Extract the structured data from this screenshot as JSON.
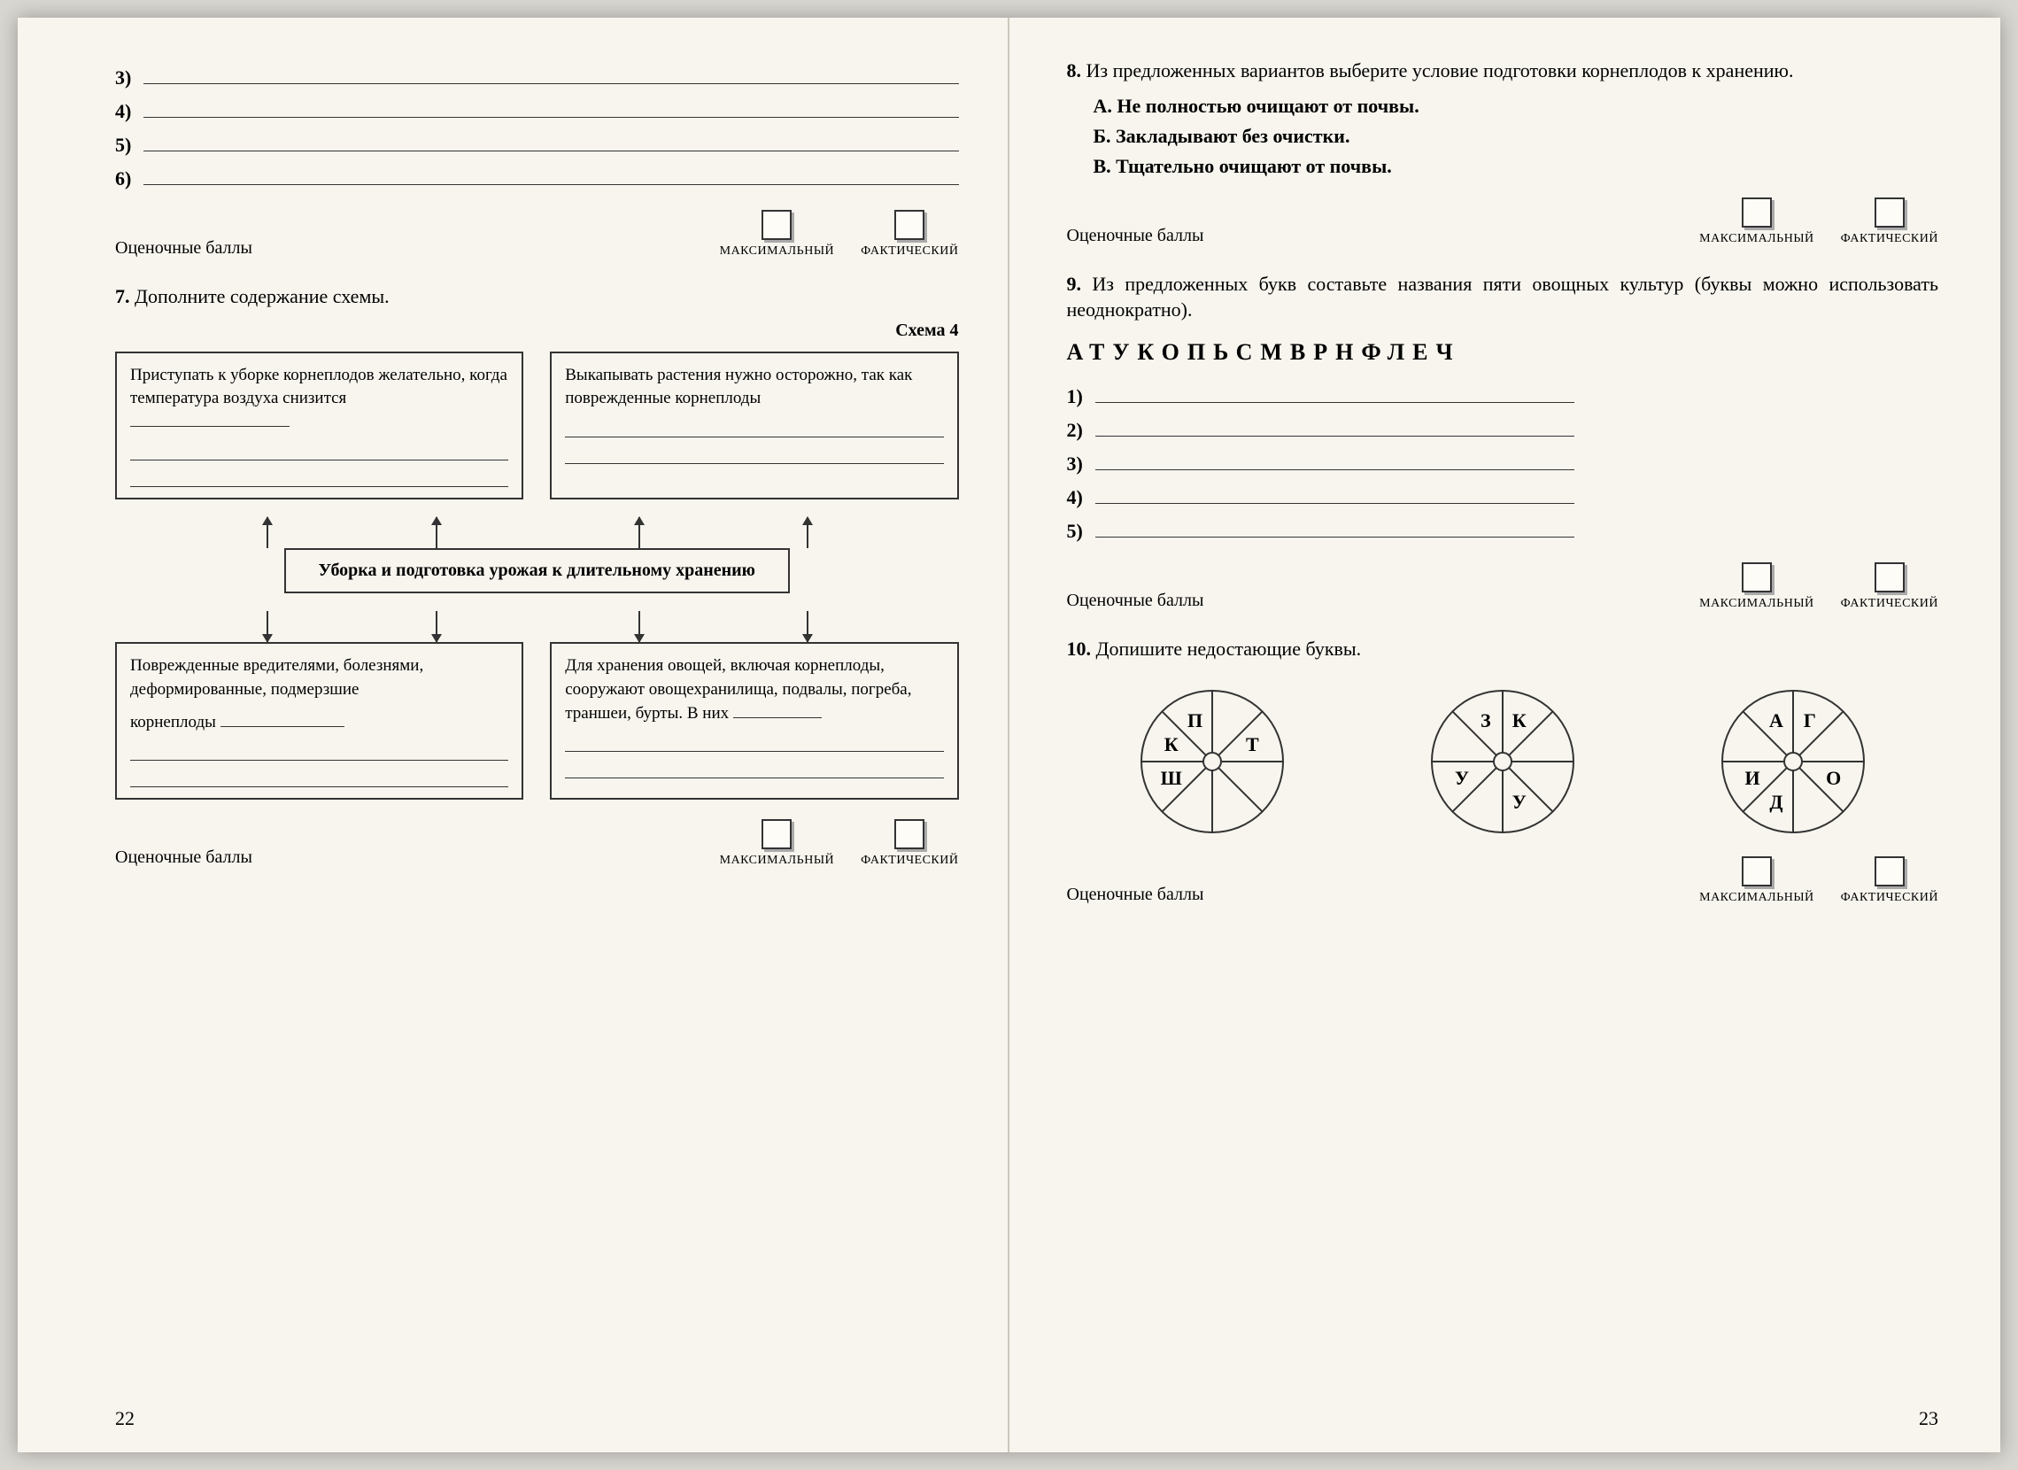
{
  "colors": {
    "scan_bg": "#d8d6d0",
    "paper": "#f7f5ee",
    "ink": "#2a2a2a",
    "shadow": "#aaa"
  },
  "leftPage": {
    "blanks_top": [
      "3)",
      "4)",
      "5)",
      "6)"
    ],
    "score_label": "Оценочные баллы",
    "score_max": "МАКСИМАЛЬНЫЙ",
    "score_fact": "ФАКТИЧЕСКИЙ",
    "task7_num": "7.",
    "task7_text": "Дополните содержание схемы.",
    "scheme_label": "Схема 4",
    "box1": "Приступать к уборке корнеплодов желательно, когда температура воздуха снизится ",
    "box2": "Выкапывать растения нужно осторожно, так как поврежденные корнеплоды",
    "center": "Уборка и подготовка урожая к длительному хранению",
    "box3a": "Поврежденные вредителями, болезнями, деформированные, подмерзшие",
    "box3b": "корнеплоды ",
    "box4a": "Для хранения овощей, включая корнеплоды, сооружают овощехранилища, подвалы, погреба, траншеи, бурты. В них ",
    "page_num": "22"
  },
  "rightPage": {
    "task8_num": "8.",
    "task8_text": "Из предложенных вариантов выберите условие подготовки корнеплодов к хранению.",
    "opt_a": "А. Не полностью очищают от почвы.",
    "opt_b": "Б. Закладывают без очистки.",
    "opt_c": "В. Тщательно очищают от почвы.",
    "score_label": "Оценочные баллы",
    "score_max": "МАКСИМАЛЬНЫЙ",
    "score_fact": "ФАКТИЧЕСКИЙ",
    "task9_num": "9.",
    "task9_text": "Из предложенных букв составьте названия пяти овощных культур (буквы можно использовать неоднократно).",
    "letters": "АТУКОПЬСМВРНФЛЕЧ",
    "blanks9": [
      "1)",
      "2)",
      "3)",
      "4)",
      "5)"
    ],
    "task10_num": "10.",
    "task10_text": "Допишите недостающие буквы.",
    "wheel1": [
      "",
      "Т",
      "",
      "",
      "",
      "Ш",
      "К",
      "П"
    ],
    "wheel2": [
      "К",
      "",
      "",
      "У",
      "",
      "У",
      "",
      "З"
    ],
    "wheel3": [
      "Г",
      "",
      "О",
      "",
      "Д",
      "И",
      "",
      "А"
    ],
    "page_num": "23"
  }
}
